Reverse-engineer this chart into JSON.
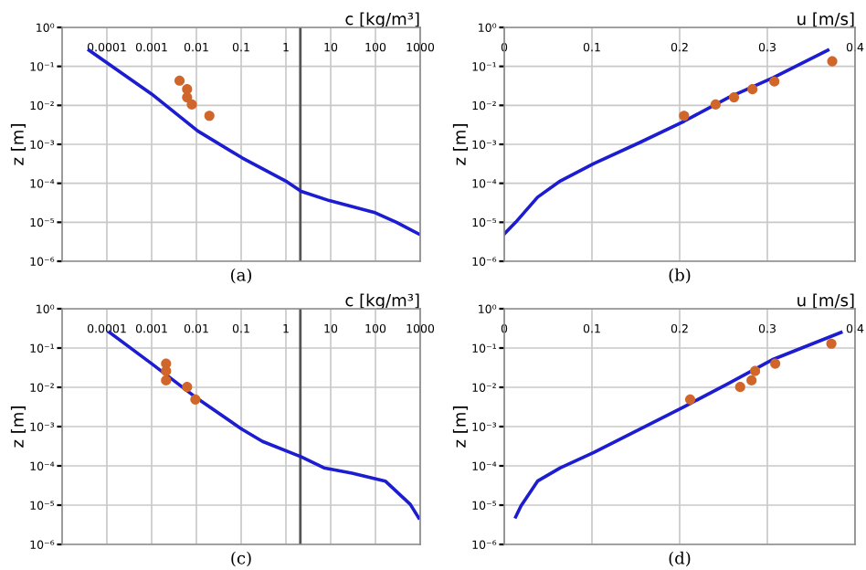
{
  "chart_data": [
    {
      "type": "line",
      "title": "(a)",
      "xlabel": "c [kg/m³]",
      "ylabel": "z [m]",
      "log": "xy",
      "xlim": [
        1e-05,
        1000
      ],
      "xticks": [
        0.0001,
        0.001,
        0.01,
        0.1,
        1,
        10,
        100,
        1000
      ],
      "ylim": [
        1e-06,
        1
      ],
      "yticks": [
        {
          "value": 1,
          "label": "10⁰"
        },
        {
          "value": 0.1,
          "label": "10⁻¹"
        },
        {
          "value": 0.01,
          "label": "10⁻²"
        },
        {
          "value": 0.001,
          "label": "10⁻³"
        },
        {
          "value": 0.0001,
          "label": "10⁻⁴"
        },
        {
          "value": 1e-05,
          "label": "10⁻⁵"
        },
        {
          "value": 1e-06,
          "label": "10⁻⁶"
        }
      ],
      "grid": true,
      "ref_lines": [
        {
          "axis": "x",
          "value": 2.1,
          "color": "#555555"
        }
      ],
      "series": [
        {
          "color": "#1c1cd0",
          "marker": "none",
          "x": [
            4e-05,
            0.001,
            0.0107,
            0.105,
            1.05,
            2.2,
            9.3,
            93,
            295,
            930
          ],
          "values": [
            0.26,
            0.0195,
            0.0022,
            0.00045,
            0.00011,
            6.2e-05,
            3.6e-05,
            1.8e-05,
            1e-05,
            5e-06
          ]
        },
        {
          "type": "scatter",
          "color": "#d0662a",
          "marker": "circle",
          "x": [
            0.0042,
            0.0062,
            0.0062,
            0.0079,
            0.0195
          ],
          "values": [
            0.043,
            0.026,
            0.016,
            0.0105,
            0.0054
          ]
        }
      ]
    },
    {
      "type": "line",
      "title": "(b)",
      "xlabel": "u [m/s]",
      "ylabel": "z [m]",
      "log": "y",
      "xlim": [
        0,
        0.4
      ],
      "xticks": [
        0,
        0.1,
        0.2,
        0.3,
        0.4
      ],
      "ylim": [
        1e-06,
        1
      ],
      "yticks": [
        {
          "value": 1,
          "label": "10⁰"
        },
        {
          "value": 0.1,
          "label": "10⁻¹"
        },
        {
          "value": 0.01,
          "label": "10⁻²"
        },
        {
          "value": 0.001,
          "label": "10⁻³"
        },
        {
          "value": 0.0001,
          "label": "10⁻⁴"
        },
        {
          "value": 1e-05,
          "label": "10⁻⁵"
        },
        {
          "value": 1e-06,
          "label": "10⁻⁶"
        }
      ],
      "grid": true,
      "series": [
        {
          "color": "#1c1cd0",
          "marker": "none",
          "x": [
            0,
            0.013,
            0.038,
            0.064,
            0.102,
            0.154,
            0.205,
            0.256,
            0.307,
            0.369
          ],
          "values": [
            5e-06,
            1e-05,
            4.4e-05,
            0.000115,
            0.00032,
            0.0011,
            0.0039,
            0.016,
            0.052,
            0.26
          ]
        },
        {
          "type": "scatter",
          "color": "#d0662a",
          "marker": "circle",
          "x": [
            0.205,
            0.241,
            0.262,
            0.283,
            0.308,
            0.374
          ],
          "values": [
            0.0054,
            0.0105,
            0.016,
            0.026,
            0.041,
            0.135
          ]
        }
      ]
    },
    {
      "type": "line",
      "title": "(c)",
      "xlabel": "c [kg/m³]",
      "ylabel": "z [m]",
      "log": "xy",
      "xlim": [
        1e-05,
        1000
      ],
      "xticks": [
        0.0001,
        0.001,
        0.01,
        0.1,
        1,
        10,
        100,
        1000
      ],
      "ylim": [
        1e-06,
        1
      ],
      "yticks": [
        {
          "value": 1,
          "label": "10⁰"
        },
        {
          "value": 0.1,
          "label": "10⁻¹"
        },
        {
          "value": 0.01,
          "label": "10⁻²"
        },
        {
          "value": 0.001,
          "label": "10⁻³"
        },
        {
          "value": 0.0001,
          "label": "10⁻⁴"
        },
        {
          "value": 1e-05,
          "label": "10⁻⁵"
        },
        {
          "value": 1e-06,
          "label": "10⁻⁶"
        }
      ],
      "grid": true,
      "ref_lines": [
        {
          "axis": "x",
          "value": 2.1,
          "color": "#555555"
        }
      ],
      "series": [
        {
          "color": "#1c1cd0",
          "marker": "none",
          "x": [
            0.000115,
            0.001,
            0.0107,
            0.105,
            0.3,
            2.2,
            7.1,
            30,
            166,
            600,
            930
          ],
          "values": [
            0.25,
            0.04,
            0.0051,
            0.00085,
            0.00042,
            0.00017,
            8.9e-05,
            6.5e-05,
            4.1e-05,
            1.05e-05,
            4.7e-06
          ]
        },
        {
          "type": "scatter",
          "color": "#d0662a",
          "marker": "circle",
          "x": [
            0.0021,
            0.0021,
            0.0021,
            0.0062,
            0.0095
          ],
          "values": [
            0.04,
            0.026,
            0.015,
            0.0102,
            0.0049
          ]
        }
      ]
    },
    {
      "type": "line",
      "title": "(d)",
      "xlabel": "u [m/s]",
      "ylabel": "z [m]",
      "log": "y",
      "xlim": [
        0,
        0.4
      ],
      "xticks": [
        0,
        0.1,
        0.2,
        0.3,
        0.4
      ],
      "ylim": [
        1e-06,
        1
      ],
      "yticks": [
        {
          "value": 1,
          "label": "10⁰"
        },
        {
          "value": 0.1,
          "label": "10⁻¹"
        },
        {
          "value": 0.01,
          "label": "10⁻²"
        },
        {
          "value": 0.001,
          "label": "10⁻³"
        },
        {
          "value": 0.0001,
          "label": "10⁻⁴"
        },
        {
          "value": 1e-05,
          "label": "10⁻⁵"
        },
        {
          "value": 1e-06,
          "label": "10⁻⁶"
        }
      ],
      "grid": true,
      "series": [
        {
          "color": "#1c1cd0",
          "marker": "none",
          "x": [
            0.013,
            0.019,
            0.038,
            0.064,
            0.102,
            0.154,
            0.205,
            0.256,
            0.307,
            0.384
          ],
          "values": [
            5e-06,
            9.5e-06,
            4.1e-05,
            8.9e-05,
            0.00022,
            0.00085,
            0.0032,
            0.0126,
            0.052,
            0.25
          ]
        },
        {
          "type": "scatter",
          "color": "#d0662a",
          "marker": "circle",
          "x": [
            0.212,
            0.269,
            0.282,
            0.286,
            0.309,
            0.373
          ],
          "values": [
            0.0049,
            0.0102,
            0.015,
            0.026,
            0.04,
            0.129
          ]
        }
      ]
    }
  ]
}
